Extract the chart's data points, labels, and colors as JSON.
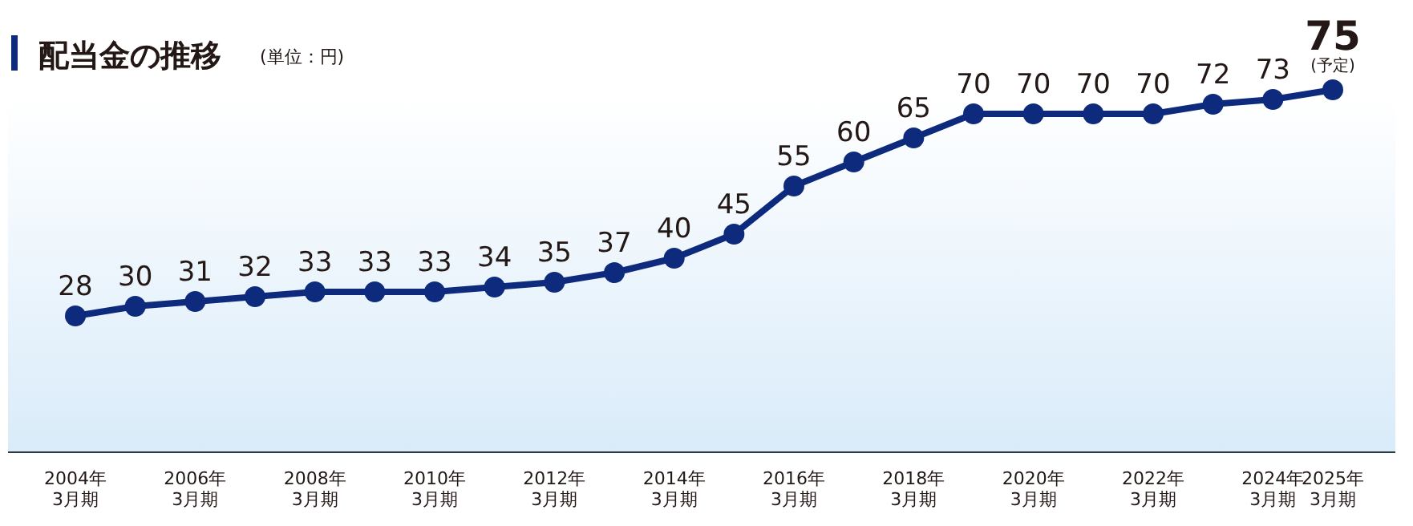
{
  "chart_data": {
    "type": "line",
    "title": "配当金の推移",
    "subtitle": "(単位：円)",
    "categories": [
      "2004年\n3月期",
      null,
      "2006年\n3月期",
      null,
      "2008年\n3月期",
      null,
      "2010年\n3月期",
      null,
      "2012年\n3月期",
      null,
      "2014年\n3月期",
      null,
      "2016年\n3月期",
      null,
      "2018年\n3月期",
      null,
      "2020年\n3月期",
      null,
      "2022年\n3月期",
      null,
      "2024年\n3月期",
      "2025年\n3月期"
    ],
    "series": [
      {
        "color": "#0d2a7d",
        "values": [
          28,
          30,
          31,
          32,
          33,
          33,
          33,
          34,
          35,
          37,
          40,
          45,
          55,
          60,
          65,
          70,
          70,
          70,
          70,
          72,
          73,
          75
        ]
      }
    ],
    "marker": "circle",
    "line_style": "solid",
    "data_labels": true,
    "annotations": [
      {
        "text": "(予定)",
        "x": "2025年\n3月期",
        "y": 75
      }
    ]
  }
}
